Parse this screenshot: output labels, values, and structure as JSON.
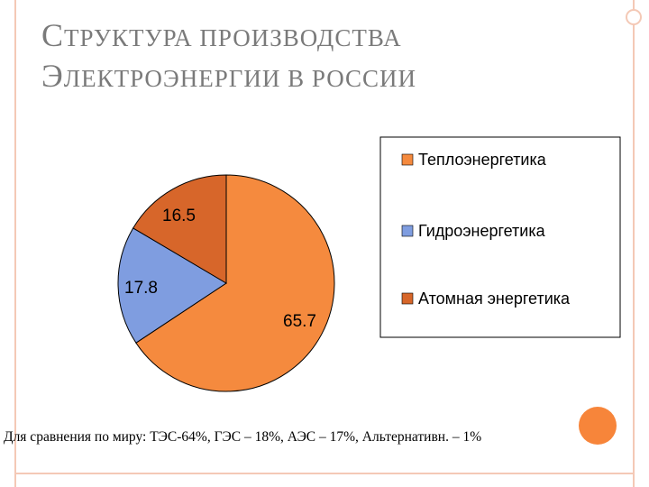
{
  "slide": {
    "title_line1": "Структура производства",
    "title_line2": "электроэнергии в России",
    "footnote": "Для сравнения по миру: ТЭС-64%, ГЭС – 18%, АЭС – 17%, Альтернативн. – 1%"
  },
  "colors": {
    "frame": "#f4c9b6",
    "accent_dot": "#f7853a",
    "title": "#7a7a7a"
  },
  "chart_data": {
    "type": "pie",
    "title": "",
    "legend_position": "right",
    "series": [
      {
        "name": "Теплоэнергетика",
        "value": 65.7,
        "color": "#f58a3e"
      },
      {
        "name": "Гидроэнергетика",
        "value": 17.8,
        "color": "#7f9de0"
      },
      {
        "name": "Атомная энергетика",
        "value": 16.5,
        "color": "#d7662a"
      }
    ],
    "data_labels": [
      "65.7",
      "17.8",
      "16.5"
    ]
  }
}
